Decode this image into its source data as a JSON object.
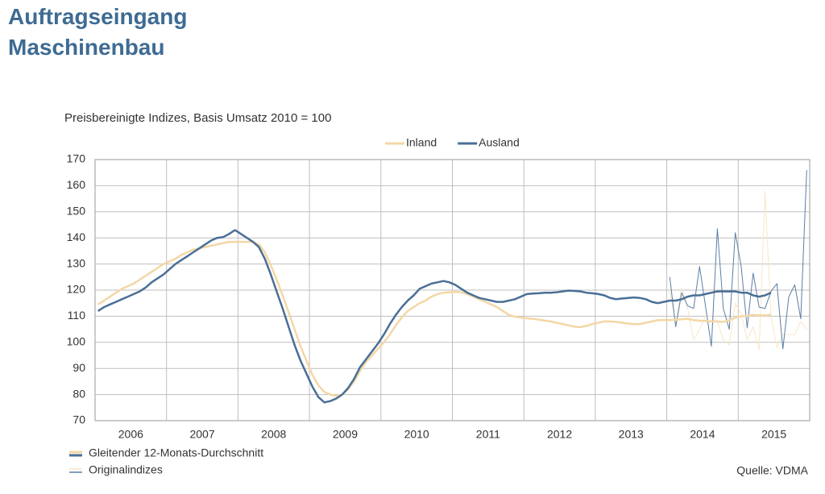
{
  "chart_data": {
    "type": "line",
    "title_lines": [
      "Auftragseingang",
      "Maschinenbau"
    ],
    "subtitle": "Preisbereinigte Indizes, Basis Umsatz 2010 = 100",
    "categories": [
      null,
      null,
      null,
      null,
      null,
      null,
      "2006",
      null,
      null,
      null,
      null,
      null,
      null,
      null,
      null,
      null,
      null,
      null,
      "2007",
      null,
      null,
      null,
      null,
      null,
      null,
      null,
      null,
      null,
      null,
      null,
      "2008",
      null,
      null,
      null,
      null,
      null,
      null,
      null,
      null,
      null,
      null,
      null,
      "2009",
      null,
      null,
      null,
      null,
      null,
      null,
      null,
      null,
      null,
      null,
      null,
      "2010",
      null,
      null,
      null,
      null,
      null,
      null,
      null,
      null,
      null,
      null,
      null,
      "2011",
      null,
      null,
      null,
      null,
      null,
      null,
      null,
      null,
      null,
      null,
      null,
      "2012",
      null,
      null,
      null,
      null,
      null,
      null,
      null,
      null,
      null,
      null,
      null,
      "2013",
      null,
      null,
      null,
      null,
      null,
      null,
      null,
      null,
      null,
      null,
      null,
      "2014",
      null,
      null,
      null,
      null,
      null,
      null,
      null,
      null,
      null,
      null,
      null,
      "2015",
      null,
      null,
      null,
      null,
      null
    ],
    "ylim": [
      70,
      170
    ],
    "yticks": [
      70,
      80,
      90,
      100,
      110,
      120,
      130,
      140,
      150,
      160,
      170
    ],
    "grid": true,
    "series": [
      {
        "name": "Inland",
        "color": "#f3d7a6",
        "original_color": "#f7e7c8",
        "values": [
          114.5,
          116,
          117.5,
          119,
          120.5,
          121.5,
          122.5,
          124,
          125.5,
          127,
          128.5,
          130,
          131,
          132,
          133.5,
          134.5,
          135.5,
          136,
          136.5,
          137,
          137.5,
          138,
          138.5,
          138.5,
          138.5,
          138.5,
          138.5,
          137.5,
          134.5,
          129.5,
          124,
          118,
          111.5,
          105,
          98.5,
          93,
          87.5,
          83.5,
          81,
          80,
          79.5,
          80,
          82,
          85,
          89,
          92.5,
          95,
          97.5,
          100,
          103,
          106.5,
          109.5,
          112,
          113.5,
          115,
          116,
          117.5,
          118.5,
          119,
          119.2,
          119.3,
          119.2,
          118.5,
          117.5,
          116.5,
          115.5,
          114.5,
          113.5,
          112,
          110.5,
          109.8,
          109.5,
          109.2,
          109,
          108.7,
          108.3,
          108,
          107.5,
          107,
          106.5,
          106,
          105.8,
          106.3,
          107,
          107.5,
          108,
          108,
          107.8,
          107.5,
          107.2,
          107,
          107,
          107.5,
          108,
          108.5,
          108.5,
          108.5,
          108.7,
          108.8,
          109,
          108.5,
          108.3,
          108.2,
          108,
          108,
          107.8,
          108.5,
          109.5,
          110,
          110.2,
          110.5,
          110.3,
          110.3,
          110.5,
          null,
          null,
          null,
          null,
          null,
          null
        ],
        "original_values": [
          null,
          null,
          null,
          null,
          null,
          null,
          null,
          null,
          null,
          null,
          null,
          null,
          null,
          null,
          null,
          null,
          null,
          null,
          null,
          null,
          null,
          null,
          null,
          null,
          null,
          null,
          null,
          null,
          null,
          null,
          null,
          null,
          null,
          null,
          null,
          null,
          null,
          null,
          null,
          null,
          null,
          null,
          null,
          null,
          null,
          null,
          null,
          null,
          null,
          null,
          null,
          null,
          null,
          null,
          null,
          null,
          null,
          null,
          null,
          null,
          null,
          null,
          null,
          null,
          null,
          null,
          null,
          null,
          null,
          null,
          null,
          null,
          null,
          null,
          null,
          null,
          null,
          null,
          null,
          null,
          null,
          null,
          null,
          null,
          null,
          null,
          null,
          null,
          null,
          null,
          null,
          null,
          null,
          null,
          null,
          null,
          120,
          107,
          121,
          113,
          101,
          105,
          110,
          110,
          108,
          101,
          99,
          115,
          111,
          101,
          106,
          97,
          158,
          110,
          98,
          103,
          103,
          103,
          108,
          105
        ]
      },
      {
        "name": "Ausland",
        "color": "#4a6f96",
        "original_color": "#5a7fa6",
        "values": [
          112,
          113.5,
          114.5,
          115.5,
          116.5,
          117.5,
          118.5,
          119.5,
          121,
          123,
          124.5,
          126,
          128,
          130,
          131.5,
          133,
          134.5,
          136,
          137.5,
          139,
          140,
          140.3,
          141.5,
          143,
          141.5,
          140,
          138.5,
          136.5,
          132,
          126,
          119.5,
          113,
          106,
          99,
          93,
          88,
          83,
          79,
          77,
          77.5,
          78.5,
          80,
          82.5,
          86,
          90.5,
          93.5,
          96.5,
          99.5,
          103,
          107,
          110.5,
          113.5,
          116,
          118,
          120.5,
          121.5,
          122.5,
          123,
          123.5,
          123,
          122,
          120.5,
          119,
          118,
          117,
          116.5,
          116,
          115.5,
          115.5,
          116,
          116.5,
          117.5,
          118.5,
          118.7,
          118.8,
          119,
          119,
          119.2,
          119.5,
          119.8,
          119.7,
          119.5,
          119,
          118.8,
          118.5,
          118,
          117,
          116.5,
          116.8,
          117,
          117.2,
          117,
          116.5,
          115.5,
          115,
          115.5,
          116,
          116,
          116.5,
          117.5,
          118,
          118,
          118.5,
          119,
          119.5,
          119.5,
          119.5,
          119.5,
          119,
          119,
          118,
          117.5,
          118,
          119,
          null,
          null,
          null,
          null,
          null,
          null
        ],
        "original_values": [
          null,
          null,
          null,
          null,
          null,
          null,
          null,
          null,
          null,
          null,
          null,
          null,
          null,
          null,
          null,
          null,
          null,
          null,
          null,
          null,
          null,
          null,
          null,
          null,
          null,
          null,
          null,
          null,
          null,
          null,
          null,
          null,
          null,
          null,
          null,
          null,
          null,
          null,
          null,
          null,
          null,
          null,
          null,
          null,
          null,
          null,
          null,
          null,
          null,
          null,
          null,
          null,
          null,
          null,
          null,
          null,
          null,
          null,
          null,
          null,
          null,
          null,
          null,
          null,
          null,
          null,
          null,
          null,
          null,
          null,
          null,
          null,
          null,
          null,
          null,
          null,
          null,
          null,
          null,
          null,
          null,
          null,
          null,
          null,
          null,
          null,
          null,
          null,
          null,
          null,
          null,
          null,
          null,
          null,
          null,
          null,
          125,
          106,
          119,
          114,
          113,
          129,
          114,
          98.5,
          143.5,
          113,
          105,
          142,
          129,
          105.5,
          126.5,
          113.5,
          113,
          119.5,
          122.5,
          97.5,
          117.5,
          122,
          109,
          166
        ]
      }
    ],
    "legend_notes": [
      "Gleitender 12-Monats-Durchschnitt",
      "Originalindizes"
    ],
    "source": "Quelle: VDMA"
  }
}
